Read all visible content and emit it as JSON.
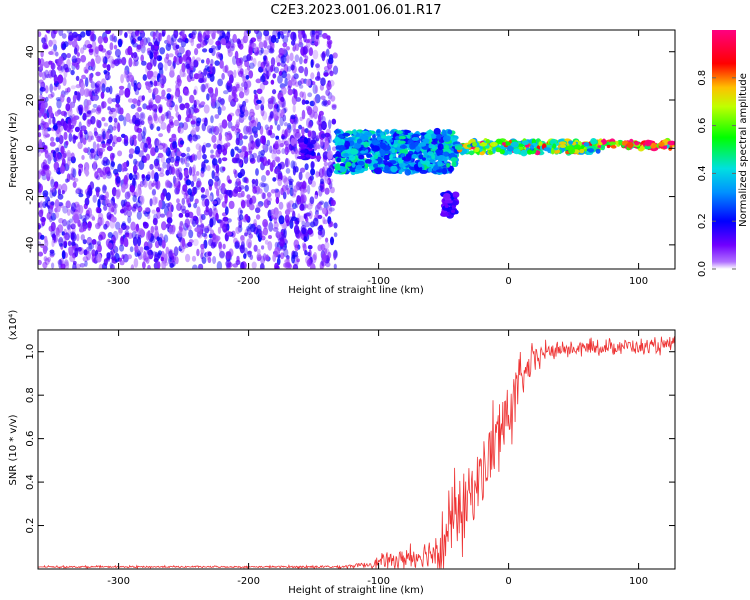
{
  "title": "C2E3.2023.001.06.01.R17",
  "chart_data": [
    {
      "type": "heatmap",
      "xlabel": "Height of straight line (km)",
      "ylabel": "Frequency (Hz)",
      "xlim": [
        -362,
        128
      ],
      "ylim": [
        -50,
        49
      ],
      "xticks": [
        -300,
        -200,
        -100,
        0,
        100
      ],
      "yticks": [
        -40,
        -20,
        0,
        20,
        40
      ],
      "colorbar": {
        "label": "Normalized spectral amplitude",
        "range": [
          0.0,
          1.0
        ],
        "ticks": [
          0.0,
          0.2,
          0.4,
          0.6,
          0.8
        ],
        "colormap": [
          "#ffffff",
          "#8000ff",
          "#0000ff",
          "#00ffff",
          "#00ff00",
          "#ffff00",
          "#ff0000",
          "#ff0080"
        ]
      },
      "regions": [
        {
          "x": [
            -362,
            -133
          ],
          "y": [
            -50,
            49
          ],
          "pattern": "dense scattered noise",
          "amplitude": 0.1
        },
        {
          "x": [
            -160,
            -150
          ],
          "y": [
            -4,
            4
          ],
          "pattern": "isolated blob",
          "amplitude": 0.15
        },
        {
          "x": [
            -133,
            -40
          ],
          "y": [
            -10,
            7
          ],
          "pattern": "broken band",
          "amplitude": 0.35
        },
        {
          "x": [
            -50,
            -40
          ],
          "y": [
            -28,
            -18
          ],
          "pattern": "downward spur",
          "amplitude": 0.15
        },
        {
          "x": [
            -40,
            70
          ],
          "y": [
            -2,
            3
          ],
          "pattern": "narrow line",
          "amplitude": 0.6
        },
        {
          "x": [
            70,
            128
          ],
          "y": [
            0,
            3
          ],
          "pattern": "narrow line",
          "amplitude": 0.85
        }
      ]
    },
    {
      "type": "line",
      "xlabel": "Height of straight line (km)",
      "ylabel": "SNR (10 * v/v)",
      "y_multiplier": "(x10⁴)",
      "xlim": [
        -362,
        128
      ],
      "ylim": [
        0,
        1.1
      ],
      "xticks": [
        -300,
        -200,
        -100,
        0,
        100
      ],
      "yticks": [
        0.2,
        0.4,
        0.6,
        0.8,
        1.0
      ],
      "color": "#ee3333",
      "series": [
        {
          "x": [
            -362,
            -300,
            -200,
            -130,
            -110,
            -100,
            -90,
            -80,
            -70,
            -60,
            -50,
            -45,
            -40,
            -35,
            -30,
            -25,
            -20,
            -15,
            -10,
            -5,
            0,
            5,
            10,
            15,
            20,
            25,
            30,
            40,
            50,
            60,
            70,
            80,
            90,
            100,
            110,
            120,
            128
          ],
          "values": [
            0.01,
            0.01,
            0.01,
            0.01,
            0.02,
            0.03,
            0.04,
            0.05,
            0.06,
            0.08,
            0.12,
            0.18,
            0.25,
            0.3,
            0.33,
            0.38,
            0.45,
            0.52,
            0.58,
            0.66,
            0.72,
            0.8,
            0.86,
            0.92,
            0.96,
            0.99,
            1.0,
            1.01,
            1.01,
            1.02,
            1.02,
            1.02,
            1.03,
            1.02,
            1.02,
            1.03,
            1.03
          ],
          "noise": [
            0.003,
            0.003,
            0.003,
            0.005,
            0.01,
            0.02,
            0.03,
            0.04,
            0.05,
            0.07,
            0.1,
            0.12,
            0.14,
            0.14,
            0.14,
            0.14,
            0.14,
            0.14,
            0.14,
            0.12,
            0.12,
            0.1,
            0.08,
            0.06,
            0.05,
            0.04,
            0.03,
            0.025,
            0.025,
            0.025,
            0.025,
            0.025,
            0.025,
            0.025,
            0.025,
            0.025,
            0.025
          ]
        }
      ]
    }
  ]
}
